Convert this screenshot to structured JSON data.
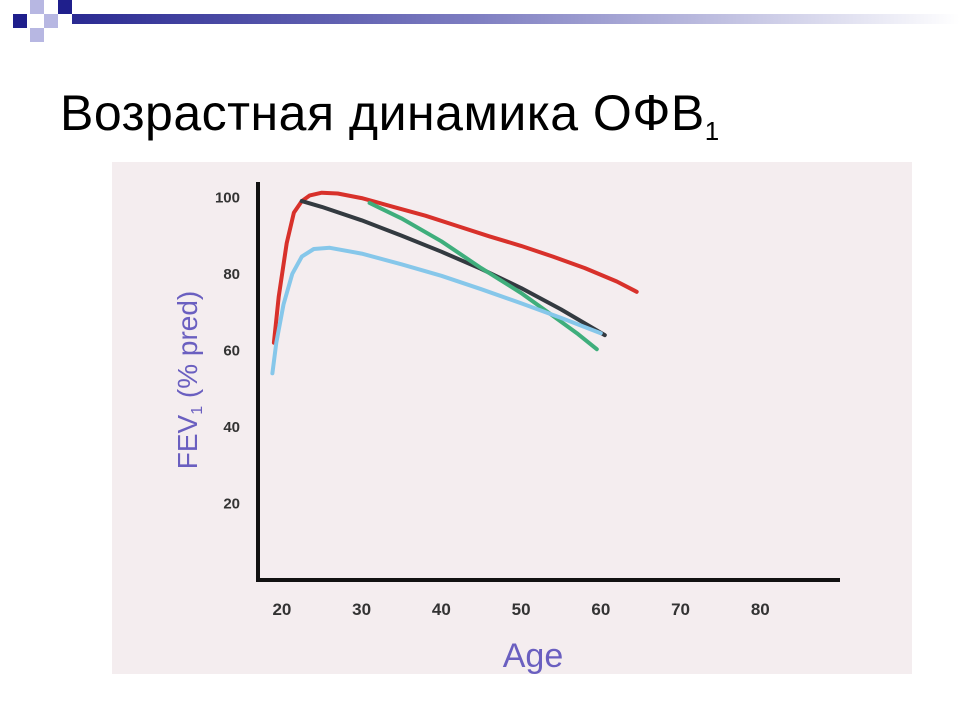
{
  "slide": {
    "title_main": "Возрастная динамика ОФВ",
    "title_subscript": "1"
  },
  "colors": {
    "accent_square_dark": "#1f1f8c",
    "accent_square_light": "#b7b7e2",
    "header_gradient_start": "#2a2a92",
    "header_gradient_end": "#ffffff",
    "chart_background": "#f4edef",
    "axis_label": "#6a5fc0"
  },
  "chart_data": {
    "type": "line",
    "xlabel": "Age",
    "ylabel": "FEV",
    "ylabel_subscript": "1",
    "ylabel_suffix": " (% pred)",
    "xlim": [
      17,
      90
    ],
    "ylim": [
      0,
      104
    ],
    "x_ticks": [
      20,
      30,
      40,
      50,
      60,
      70,
      80
    ],
    "y_ticks": [
      20,
      40,
      60,
      80,
      100
    ],
    "grid": false,
    "series": [
      {
        "color": "#d8312b",
        "x": [
          19.0,
          19.6,
          20.6,
          21.5,
          22.5,
          23.5,
          25.0,
          27.0,
          30.0,
          34.0,
          38.0,
          42.0,
          46.0,
          50.0,
          54.0,
          58.0,
          62.0,
          64.5
        ],
        "y": [
          62,
          74,
          88,
          96,
          99,
          100.5,
          101.2,
          101.0,
          99.8,
          97.5,
          95.2,
          92.5,
          89.8,
          87.3,
          84.5,
          81.5,
          78.0,
          75.3
        ]
      },
      {
        "color": "#333a40",
        "x": [
          22.5,
          25.0,
          30.0,
          35.0,
          40.0,
          45.0,
          50.0,
          55.0,
          60.5
        ],
        "y": [
          99.0,
          97.5,
          94.0,
          90.0,
          85.8,
          81.3,
          76.3,
          70.7,
          64.0
        ]
      },
      {
        "color": "#3fae7c",
        "x": [
          31.0,
          35.0,
          40.0,
          45.0,
          50.0,
          54.0,
          57.0,
          59.5
        ],
        "y": [
          98.5,
          94.5,
          88.5,
          81.5,
          75.0,
          69.0,
          64.5,
          60.3
        ]
      },
      {
        "color": "#86c7ea",
        "x": [
          18.8,
          19.3,
          20.2,
          21.3,
          22.5,
          24.0,
          26.0,
          30.0,
          35.0,
          40.0,
          45.0,
          50.0,
          55.0,
          60.0
        ],
        "y": [
          54,
          62,
          72,
          80,
          84.5,
          86.5,
          86.8,
          85.3,
          82.5,
          79.5,
          76.0,
          72.3,
          68.5,
          64.5
        ]
      }
    ]
  }
}
